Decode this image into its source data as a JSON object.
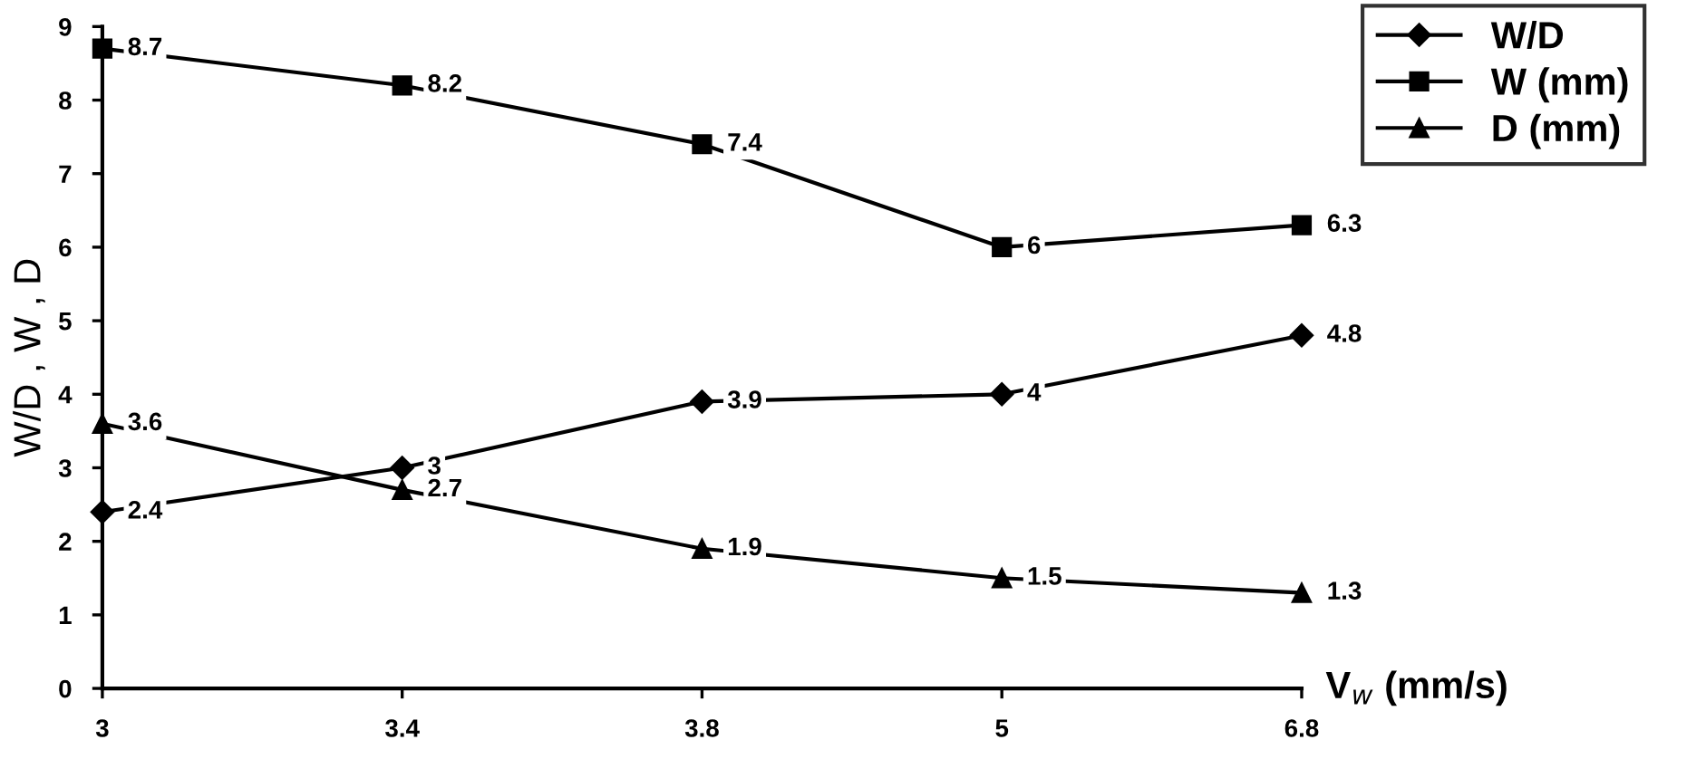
{
  "chart_data": {
    "type": "line",
    "xlabel": "V$_{w}$ (mm/s)",
    "ylabel": "W/D , W , D",
    "categories": [
      "3",
      "3.4",
      "3.8",
      "5",
      "6.8"
    ],
    "series": [
      {
        "name": "W/D",
        "color": "#000000",
        "marker": "diamond",
        "values": [
          2.4,
          3,
          3.9,
          4,
          4.8
        ]
      },
      {
        "name": "W (mm)",
        "color": "#000000",
        "marker": "square",
        "values": [
          8.7,
          8.2,
          7.4,
          6,
          6.3
        ]
      },
      {
        "name": "D (mm)",
        "color": "#000000",
        "marker": "triangle",
        "values": [
          3.6,
          2.7,
          1.9,
          1.5,
          1.3
        ]
      }
    ],
    "ylim": [
      0,
      9
    ],
    "yticks": [
      0,
      1,
      2,
      3,
      4,
      5,
      6,
      7,
      8,
      9
    ],
    "grid": false,
    "legend": "top right",
    "data_labels": true,
    "line_style": "solid"
  }
}
